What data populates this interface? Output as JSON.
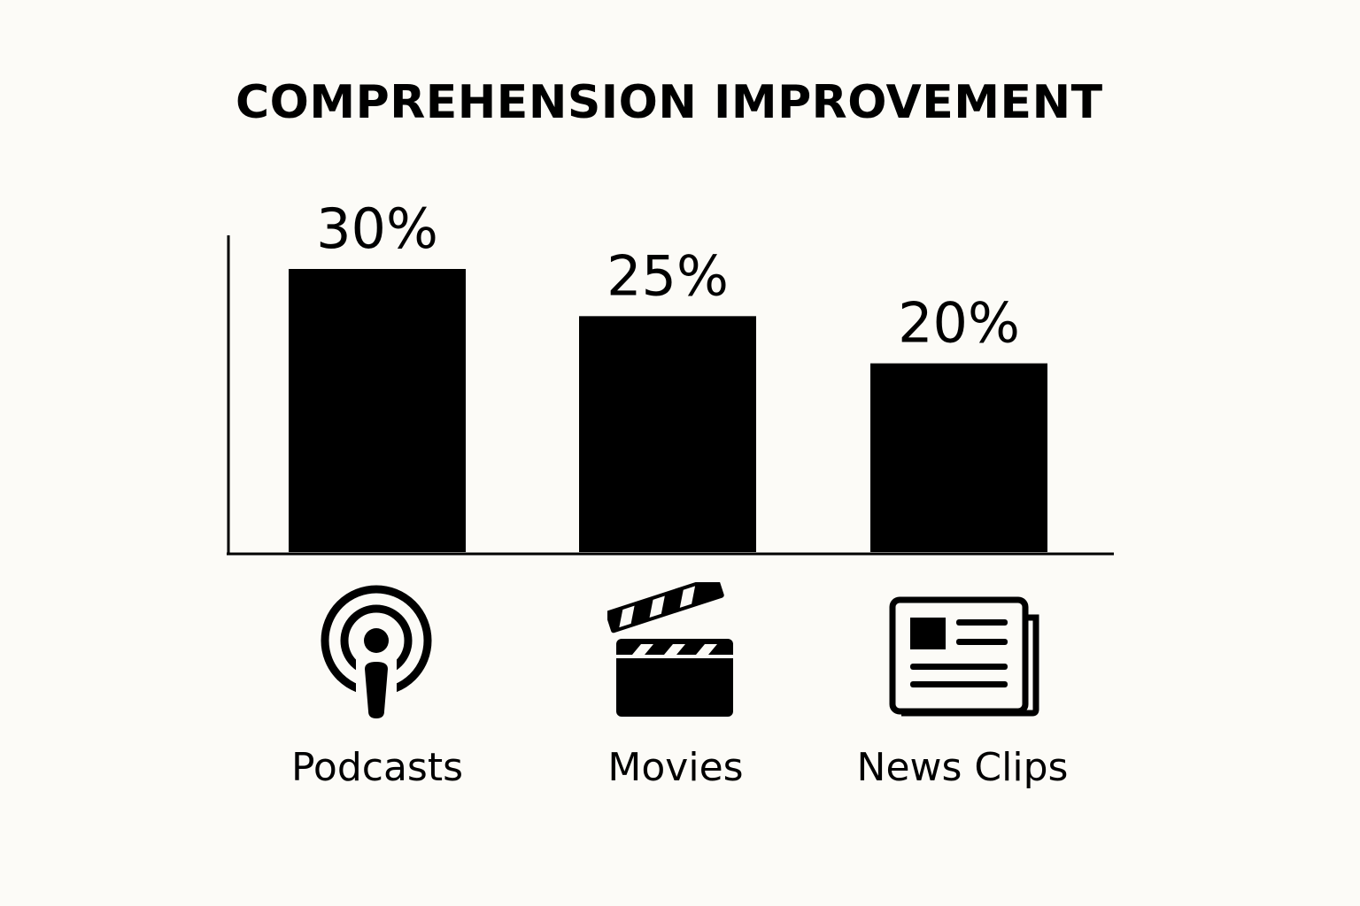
{
  "chart_data": {
    "type": "bar",
    "title": "COMPREHENSION IMPROVEMENT",
    "categories": [
      "Podcasts",
      "Movies",
      "News Clips"
    ],
    "values": [
      30,
      25,
      20
    ],
    "value_labels": [
      "30%",
      "25%",
      "20%"
    ],
    "xlabel": "",
    "ylabel": "",
    "ylim": [
      0,
      30
    ],
    "grid": false,
    "legend": "none"
  },
  "icons": [
    "podcast-icon",
    "clapperboard-icon",
    "newspaper-icon"
  ],
  "colors": {
    "background": "#fcfbf7",
    "bar": "#000000"
  }
}
